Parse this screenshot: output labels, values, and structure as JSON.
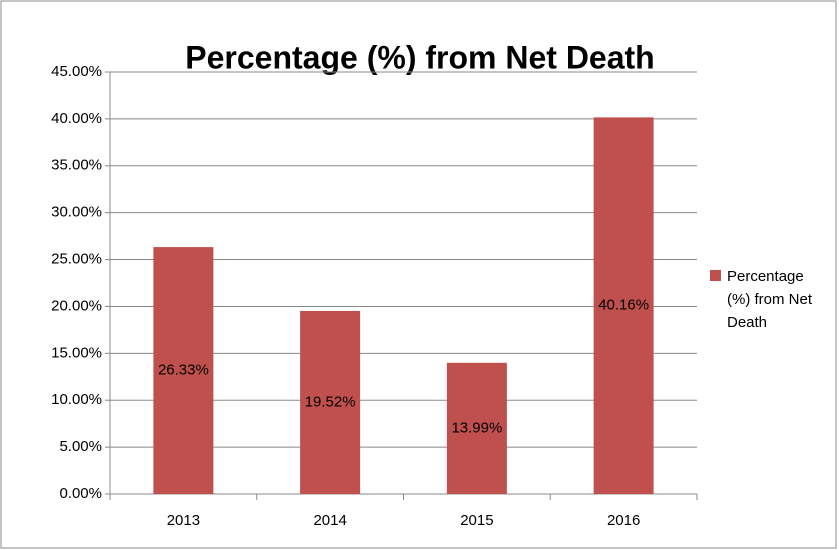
{
  "chart_data": {
    "type": "bar",
    "title": "Percentage (%) from Net Death",
    "categories": [
      "2013",
      "2014",
      "2015",
      "2016"
    ],
    "series": [
      {
        "name": "Percentage (%) from Net Death",
        "color": "#c0504d",
        "values": [
          26.33,
          19.52,
          13.99,
          40.16
        ],
        "value_labels": [
          "26.33%",
          "19.52%",
          "13.99%",
          "40.16%"
        ]
      }
    ],
    "ylim": [
      0,
      45
    ],
    "yticks": [
      {
        "value": 0,
        "label": "0.00%"
      },
      {
        "value": 5,
        "label": "5.00%"
      },
      {
        "value": 10,
        "label": "10.00%"
      },
      {
        "value": 15,
        "label": "15.00%"
      },
      {
        "value": 20,
        "label": "20.00%"
      },
      {
        "value": 25,
        "label": "25.00%"
      },
      {
        "value": 30,
        "label": "30.00%"
      },
      {
        "value": 35,
        "label": "35.00%"
      },
      {
        "value": 40,
        "label": "40.00%"
      },
      {
        "value": 45,
        "label": "45.00%"
      }
    ],
    "grid": true,
    "legend": "right"
  }
}
